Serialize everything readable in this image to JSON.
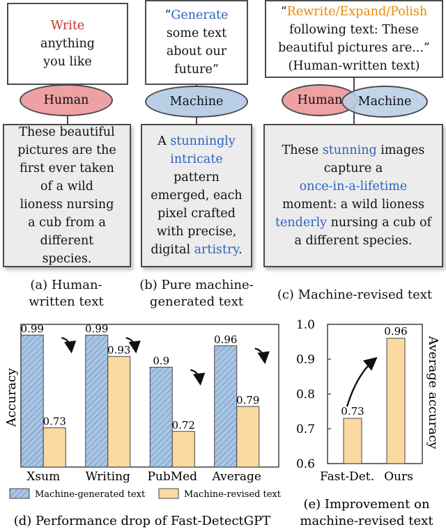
{
  "panel_a": {
    "prompt": [
      "Write",
      "anything",
      "you like"
    ],
    "role": "Human",
    "output": [
      "These beautiful",
      "pictures are the",
      "first ever taken",
      "of a wild",
      "lioness nursing",
      "a cub from a",
      "different",
      "species."
    ],
    "caption": [
      "(a) Human-",
      "written text"
    ]
  },
  "panel_b": {
    "prompt": [
      "“",
      "Generate",
      "some text",
      "about our",
      "future”"
    ],
    "role": "Machine",
    "output": [
      "A ",
      "stunningly",
      "intricate",
      "pattern",
      "emerged, each",
      "pixel crafted",
      "with precise,",
      "digital ",
      "artistry",
      "."
    ],
    "caption": [
      "(b) Pure machine-",
      "generated text"
    ]
  },
  "panel_c": {
    "prompt": [
      "“",
      "Rewrite/Expand/Polish",
      "following text: These",
      "beautiful pictures are...”",
      "(Human-written text)"
    ],
    "role_human": "Human",
    "role_machine": "Machine",
    "output": [
      "These ",
      "stunning",
      " images",
      "capture a",
      "once-in-a-lifetime",
      "moment: a wild lioness",
      "tenderly",
      " nursing a cub of",
      "a different species."
    ],
    "caption": "(c) Machine-revised text"
  },
  "colors": {
    "human_fill": "#eda1a3",
    "machine_fill": "#b8cfe6",
    "generated_bar": "#a9c4e4",
    "revised_bar": "#fbd9a0",
    "highlight_red": "#c8332b",
    "highlight_blue": "#2b63c0",
    "highlight_orange": "#e68a00"
  },
  "chart_data": [
    {
      "type": "bar",
      "ylabel": "Accuracy",
      "categories": [
        "Xsum",
        "Writing",
        "PubMed",
        "Average"
      ],
      "series": [
        {
          "name": "Machine-generated text",
          "values": [
            0.99,
            0.99,
            0.9,
            0.96
          ]
        },
        {
          "name": "Machine-revised text",
          "values": [
            0.73,
            0.93,
            0.72,
            0.79
          ]
        }
      ],
      "value_labels": [
        [
          "0.99",
          "0.99",
          "0.9",
          "0.96"
        ],
        [
          "0.73",
          "0.93",
          "0.72",
          "0.79"
        ]
      ],
      "ylim": [
        0.62,
        1.02
      ],
      "legend_position": "bottom",
      "caption": "(d) Performance drop of Fast-DetectGPT"
    },
    {
      "type": "bar",
      "ylabel": "Average accuracy",
      "categories": [
        "Fast-Det.",
        "Ours"
      ],
      "values": [
        0.73,
        0.96
      ],
      "value_labels": [
        "0.73",
        "0.96"
      ],
      "ylim": [
        0.6,
        1.0
      ],
      "yticks": [
        "0.6",
        "0.7",
        "0.8",
        "0.9",
        "1.0"
      ],
      "caption": [
        "(e) Improvement on",
        "machine-revised text"
      ]
    }
  ]
}
